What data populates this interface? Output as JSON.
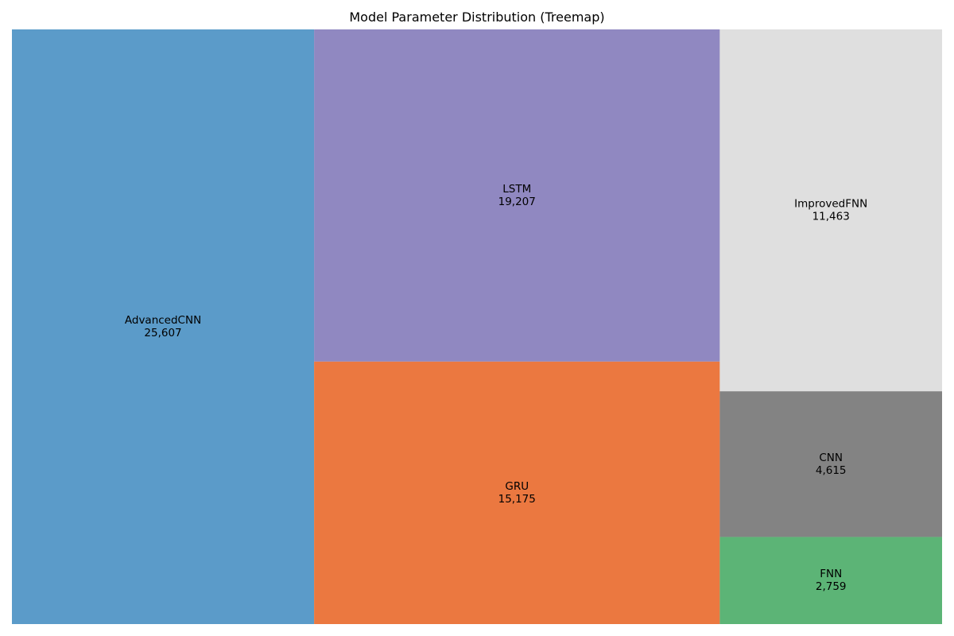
{
  "chart_data": {
    "type": "treemap",
    "title": "Model Parameter Distribution (Treemap)",
    "items": [
      {
        "label": "AdvancedCNN",
        "value": 25607,
        "value_text": "25,607",
        "color": "#5b9bc9"
      },
      {
        "label": "LSTM",
        "value": 19207,
        "value_text": "19,207",
        "color": "#9088c1"
      },
      {
        "label": "GRU",
        "value": 15175,
        "value_text": "15,175",
        "color": "#eb7840"
      },
      {
        "label": "ImprovedFNN",
        "value": 11463,
        "value_text": "11,463",
        "color": "#dfdfdf"
      },
      {
        "label": "CNN",
        "value": 4615,
        "value_text": "4,615",
        "color": "#838383"
      },
      {
        "label": "FNN",
        "value": 2759,
        "value_text": "2,759",
        "color": "#5cb476"
      }
    ],
    "grid": false,
    "legend": "none"
  }
}
